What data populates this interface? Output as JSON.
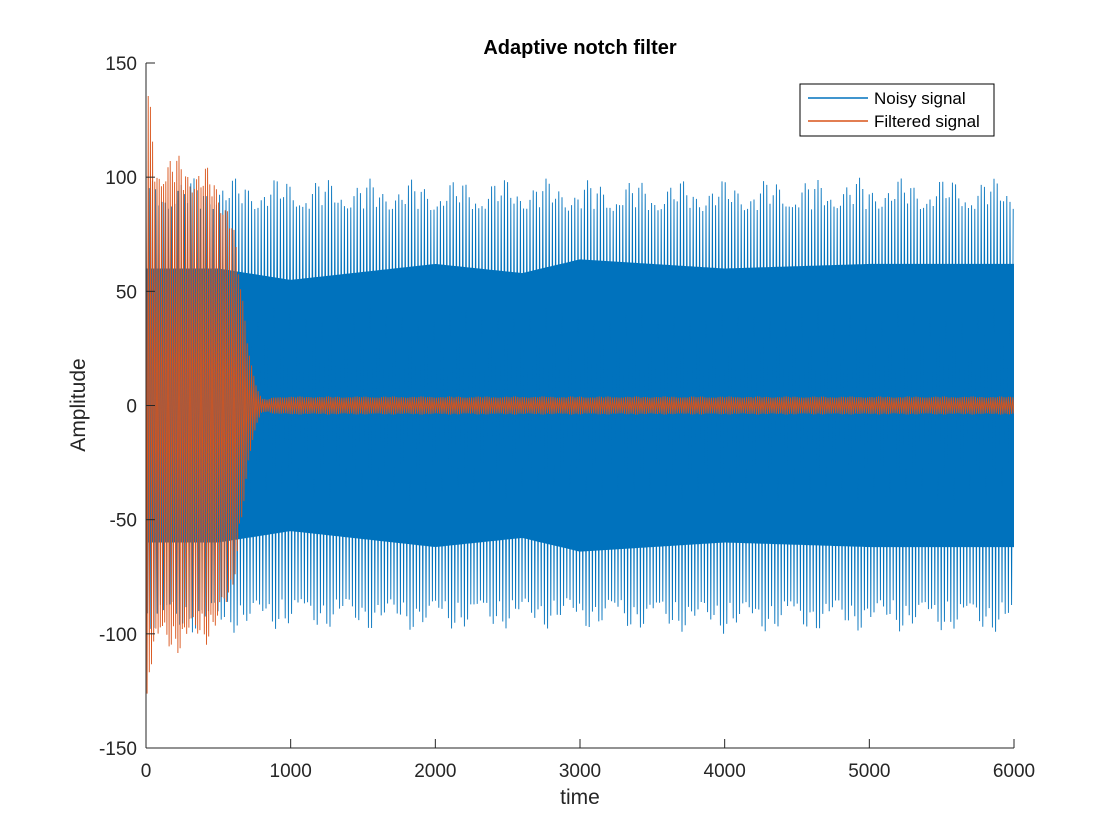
{
  "chart_data": {
    "type": "line",
    "title": "Adaptive notch filter",
    "xlabel": "time",
    "ylabel": "Amplitude",
    "xlim": [
      0,
      6000
    ],
    "ylim": [
      -150,
      150
    ],
    "xticks": [
      0,
      1000,
      2000,
      3000,
      4000,
      5000,
      6000
    ],
    "xtick_labels": [
      "0",
      "1000",
      "2000",
      "3000",
      "4000",
      "5000",
      "6000"
    ],
    "yticks": [
      150,
      100,
      50,
      0,
      -50,
      -100,
      -150
    ],
    "ytick_labels": [
      "150",
      "100",
      "50",
      "0",
      "-50",
      "-100",
      "-150"
    ],
    "grid": false,
    "legend_position": "top-right",
    "series": [
      {
        "name": "Noisy signal",
        "color": "#0072BD",
        "envelope": {
          "x": [
            0,
            500,
            1000,
            2000,
            2600,
            3000,
            4000,
            5000,
            6000
          ],
          "upper": [
            100,
            100,
            100,
            99,
            100,
            99,
            99,
            100,
            100
          ],
          "lower": [
            -100,
            -100,
            -98,
            -99,
            -98,
            -98,
            -100,
            -99,
            -100
          ],
          "inner_upper": [
            60,
            60,
            55,
            62,
            58,
            64,
            60,
            62,
            62
          ],
          "inner_lower": [
            -60,
            -60,
            -55,
            -62,
            -58,
            -64,
            -60,
            -62,
            -62
          ]
        }
      },
      {
        "name": "Filtered signal",
        "color": "#D95319",
        "envelope": {
          "x": [
            0,
            20,
            60,
            150,
            300,
            450,
            560,
            600,
            650,
            700,
            760,
            800,
            850,
            900,
            1500,
            2500,
            3500,
            4500,
            5500,
            6000
          ],
          "upper": [
            150,
            140,
            112,
            111,
            109,
            104,
            94,
            82,
            58,
            30,
            10,
            3,
            3,
            4,
            4,
            4,
            4,
            4,
            4,
            4
          ],
          "lower": [
            -150,
            -120,
            -112,
            -110,
            -108,
            -104,
            -94,
            -82,
            -58,
            -30,
            -10,
            -3,
            -3,
            -4,
            -4,
            -4,
            -4,
            -4,
            -4,
            -4
          ]
        }
      }
    ]
  }
}
